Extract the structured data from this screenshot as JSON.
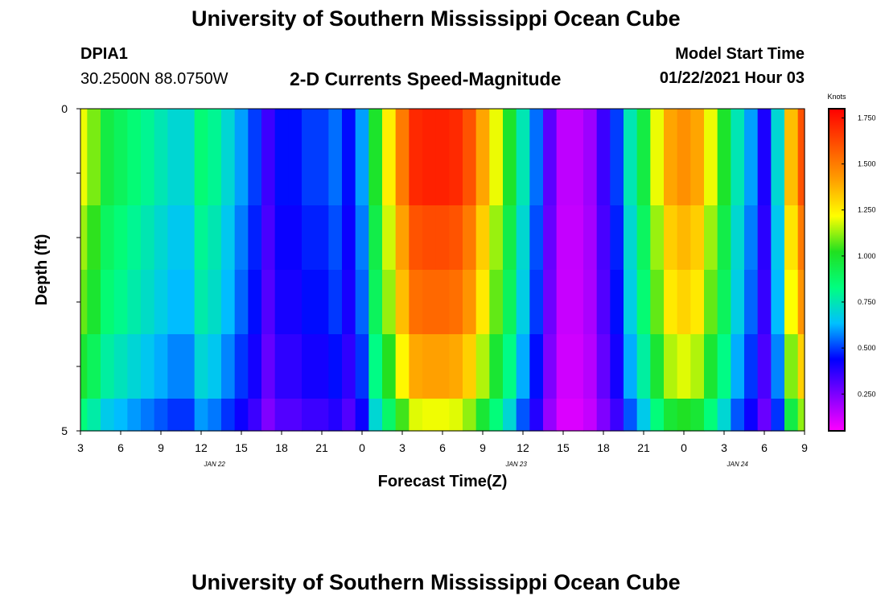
{
  "header": {
    "title": "University of Southern Mississippi Ocean Cube",
    "station_id": "DPIA1",
    "station_coords": "30.2500N 88.0750W",
    "chart_title": "2-D Currents Speed-Magnitude",
    "model_start_label": "Model Start Time",
    "model_start_value": "01/22/2021 Hour 03"
  },
  "footer": {
    "title": "University of Southern Mississippi Ocean Cube"
  },
  "chart_data": {
    "type": "heatmap",
    "title": "2-D Currents Speed-Magnitude",
    "xlabel": "Forecast Time(Z)",
    "ylabel": "Depth (ft)",
    "x_start_hour": 3,
    "x_end_hour": 57,
    "x_tick_labels": [
      "3",
      "6",
      "9",
      "12",
      "15",
      "18",
      "21",
      "0",
      "3",
      "6",
      "9",
      "12",
      "15",
      "18",
      "21",
      "0",
      "3",
      "6",
      "9"
    ],
    "date_labels": [
      {
        "label": "JAN  22",
        "hour": 13
      },
      {
        "label": "JAN  23",
        "hour": 35.5
      },
      {
        "label": "JAN  24",
        "hour": 52
      }
    ],
    "y_tick_labels": [
      "0",
      "5"
    ],
    "ylim": [
      0,
      5
    ],
    "depth_bins": 5,
    "colorbar": {
      "unit": "Knots",
      "min": 0.05,
      "max": 1.8,
      "tick_labels": [
        "1.750",
        "1.500",
        "1.250",
        "1.000",
        "0.750",
        "0.500",
        "0.250"
      ],
      "tick_values": [
        1.75,
        1.5,
        1.25,
        1.0,
        0.75,
        0.5,
        0.25
      ],
      "colors": [
        "#ff00ff",
        "#8000ff",
        "#0000ff",
        "#00c0ff",
        "#00ff80",
        "#20e020",
        "#ffff00",
        "#ffa000",
        "#ff5000",
        "#ff0000"
      ]
    },
    "time_hours": [
      3,
      4,
      5,
      6,
      7,
      8,
      9,
      10,
      11,
      12,
      13,
      14,
      15,
      16,
      17,
      18,
      19,
      20,
      21,
      22,
      23,
      24,
      25,
      26,
      27,
      28,
      29,
      30,
      31,
      32,
      33,
      34,
      35,
      36,
      37,
      38,
      39,
      40,
      41,
      42,
      43,
      44,
      45,
      46,
      47,
      48,
      49,
      50,
      51,
      52,
      53,
      54,
      55,
      56,
      57
    ],
    "surface_row": [
      1.2,
      1.1,
      0.95,
      0.9,
      0.85,
      0.8,
      0.75,
      0.7,
      0.7,
      0.85,
      0.8,
      0.7,
      0.6,
      0.5,
      0.35,
      0.45,
      0.45,
      0.5,
      0.5,
      0.55,
      0.45,
      0.6,
      1.0,
      1.25,
      1.5,
      1.7,
      1.72,
      1.72,
      1.7,
      1.6,
      1.4,
      1.2,
      1.0,
      0.75,
      0.55,
      0.3,
      0.15,
      0.15,
      0.2,
      0.35,
      0.5,
      0.75,
      0.95,
      1.2,
      1.4,
      1.45,
      1.4,
      1.2,
      1.0,
      0.75,
      0.6,
      0.4,
      0.7,
      1.35,
      1.6
    ],
    "depth_factors": [
      1.0,
      0.94,
      0.9,
      0.82,
      0.7
    ],
    "speed_values": []
  }
}
